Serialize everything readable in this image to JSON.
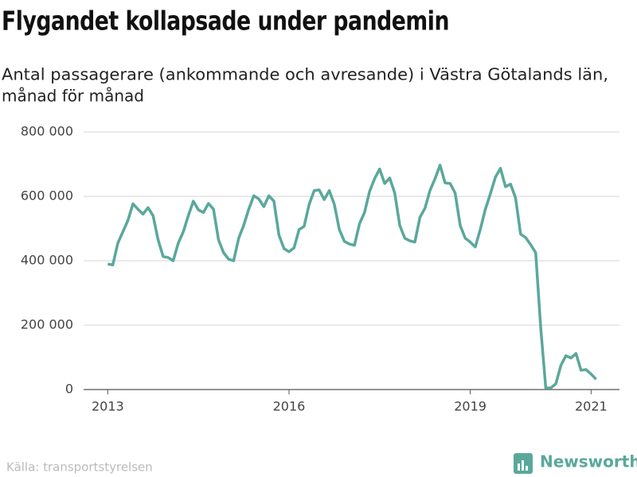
{
  "chart_data": {
    "type": "line",
    "title": "Flygandet kollapsade under pandemin",
    "subtitle_lines": [
      "Antal passagerare (ankommande och avresande) i Västra Götalands län,",
      "månad för månad"
    ],
    "source": "Källa: transportstyrelsen",
    "brand": "Newsworthy",
    "x": [
      2013,
      2013.083,
      2013.167,
      2013.25,
      2013.333,
      2013.417,
      2013.5,
      2013.583,
      2013.667,
      2013.75,
      2013.833,
      2013.917,
      2014,
      2014.083,
      2014.167,
      2014.25,
      2014.333,
      2014.417,
      2014.5,
      2014.583,
      2014.667,
      2014.75,
      2014.833,
      2014.917,
      2015,
      2015.083,
      2015.167,
      2015.25,
      2015.333,
      2015.417,
      2015.5,
      2015.583,
      2015.667,
      2015.75,
      2015.833,
      2015.917,
      2016,
      2016.083,
      2016.167,
      2016.25,
      2016.333,
      2016.417,
      2016.5,
      2016.583,
      2016.667,
      2016.75,
      2016.833,
      2016.917,
      2017,
      2017.083,
      2017.167,
      2017.25,
      2017.333,
      2017.417,
      2017.5,
      2017.583,
      2017.667,
      2017.75,
      2017.833,
      2017.917,
      2018,
      2018.083,
      2018.167,
      2018.25,
      2018.333,
      2018.417,
      2018.5,
      2018.583,
      2018.667,
      2018.75,
      2018.833,
      2018.917,
      2019,
      2019.083,
      2019.167,
      2019.25,
      2019.333,
      2019.417,
      2019.5,
      2019.583,
      2019.667,
      2019.75,
      2019.833,
      2019.917,
      2020,
      2020.083,
      2020.167,
      2020.25,
      2020.333,
      2020.417,
      2020.5,
      2020.583,
      2020.667,
      2020.75,
      2020.833,
      2020.917,
      2021,
      2021.083
    ],
    "series": [
      {
        "name": "Passagerare",
        "color": "#5aa89b",
        "values": [
          390000,
          387000,
          455000,
          490000,
          525000,
          577000,
          560000,
          545000,
          565000,
          540000,
          465000,
          413000,
          410000,
          400000,
          455000,
          490000,
          540000,
          585000,
          558000,
          550000,
          578000,
          560000,
          465000,
          425000,
          405000,
          400000,
          470000,
          510000,
          560000,
          602000,
          592000,
          568000,
          602000,
          585000,
          480000,
          438000,
          428000,
          440000,
          497000,
          507000,
          575000,
          618000,
          620000,
          590000,
          618000,
          575000,
          497000,
          460000,
          452000,
          448000,
          515000,
          550000,
          615000,
          655000,
          685000,
          640000,
          657000,
          610000,
          510000,
          470000,
          462000,
          458000,
          535000,
          563000,
          618000,
          655000,
          697000,
          642000,
          640000,
          610000,
          510000,
          470000,
          458000,
          443000,
          498000,
          560000,
          608000,
          660000,
          687000,
          630000,
          638000,
          595000,
          483000,
          472000,
          450000,
          425000,
          190000,
          5000,
          5000,
          18000,
          75000,
          105000,
          98000,
          112000,
          60000,
          62000,
          48000,
          32000
        ]
      }
    ],
    "xlim": [
      2012.6,
      2021.47
    ],
    "xticks": [
      2013,
      2016,
      2019,
      2021
    ],
    "ylim": [
      0,
      800000
    ],
    "yticks": [
      0,
      {
        "value": 200000,
        "label": "200 000"
      },
      {
        "value": 400000,
        "label": "400 000"
      },
      {
        "value": 600000,
        "label": "600 000"
      },
      {
        "value": 800000,
        "label": "800 000"
      }
    ],
    "grid": true
  }
}
